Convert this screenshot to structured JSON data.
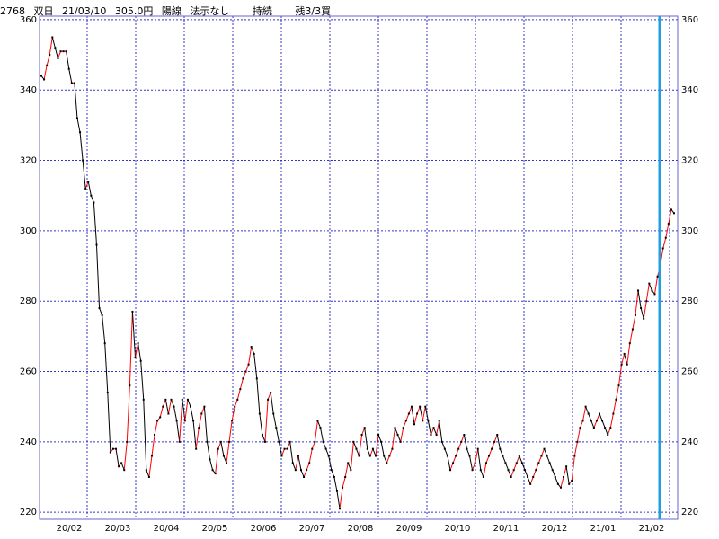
{
  "header": {
    "code": "2768",
    "name": "双日",
    "date": "21/03/10",
    "price": "305.0円",
    "candle": "陽線",
    "signal": "法示なし",
    "status": "持続",
    "remaining": "残3/3買"
  },
  "colors": {
    "background": "#ffffff",
    "grid": "#3333cc",
    "frame": "#6666cc",
    "up": "#ff0000",
    "down": "#000000",
    "marker": "#1ea0e0"
  },
  "chart_data": {
    "type": "line",
    "title": "",
    "xlabel": "",
    "ylabel": "",
    "ylim": [
      218,
      361
    ],
    "y_ticks": [
      220,
      240,
      260,
      280,
      300,
      320,
      340,
      360
    ],
    "x_tick_labels": [
      "20/02",
      "20/03",
      "20/04",
      "20/05",
      "20/06",
      "20/07",
      "20/08",
      "20/09",
      "20/10",
      "20/11",
      "20/12",
      "21/01",
      "21/02"
    ],
    "grid": true,
    "marker_date": "21/03/10",
    "series": [
      {
        "values": [
          344,
          343,
          347,
          350,
          355,
          352,
          349,
          351,
          351,
          351,
          346,
          342,
          342,
          332,
          328,
          320,
          312,
          314,
          310,
          308,
          296,
          278,
          276,
          268,
          254,
          237,
          238,
          238,
          233,
          234,
          232,
          240,
          256,
          277,
          264,
          268,
          263,
          252,
          232,
          230,
          236,
          242,
          246,
          247,
          250,
          252,
          248,
          252,
          250,
          246,
          240,
          252,
          246,
          252,
          250,
          246,
          238,
          244,
          248,
          250,
          240,
          235,
          232,
          231,
          238,
          240,
          236,
          234,
          240,
          246,
          250,
          252,
          255,
          258,
          260,
          262,
          267,
          265,
          258,
          248,
          242,
          240,
          252,
          254,
          248,
          244,
          240,
          236,
          238,
          238,
          240,
          234,
          232,
          236,
          232,
          230,
          232,
          234,
          238,
          240,
          246,
          244,
          240,
          238,
          236,
          232,
          230,
          226,
          221,
          227,
          230,
          234,
          232,
          240,
          238,
          236,
          242,
          244,
          238,
          236,
          238,
          236,
          242,
          240,
          236,
          234,
          236,
          238,
          244,
          242,
          240,
          244,
          246,
          248,
          250,
          245,
          248,
          250,
          246,
          250,
          246,
          242,
          244,
          242,
          246,
          240,
          238,
          236,
          232,
          234,
          236,
          238,
          240,
          242,
          238,
          236,
          232,
          234,
          238,
          232,
          230,
          234,
          236,
          238,
          240,
          242,
          238,
          236,
          234,
          232,
          230,
          232,
          234,
          236,
          234,
          232,
          230,
          228,
          230,
          232,
          234,
          236,
          238,
          236,
          234,
          232,
          230,
          228,
          227,
          230,
          233,
          228,
          229,
          236,
          240,
          244,
          246,
          250,
          248,
          246,
          244,
          246,
          248,
          246,
          244,
          242,
          244,
          248,
          252,
          256,
          262,
          265,
          262,
          268,
          272,
          276,
          283,
          278,
          275,
          280,
          285,
          283,
          282,
          287,
          290,
          295,
          298,
          302,
          306,
          305
        ]
      }
    ]
  }
}
